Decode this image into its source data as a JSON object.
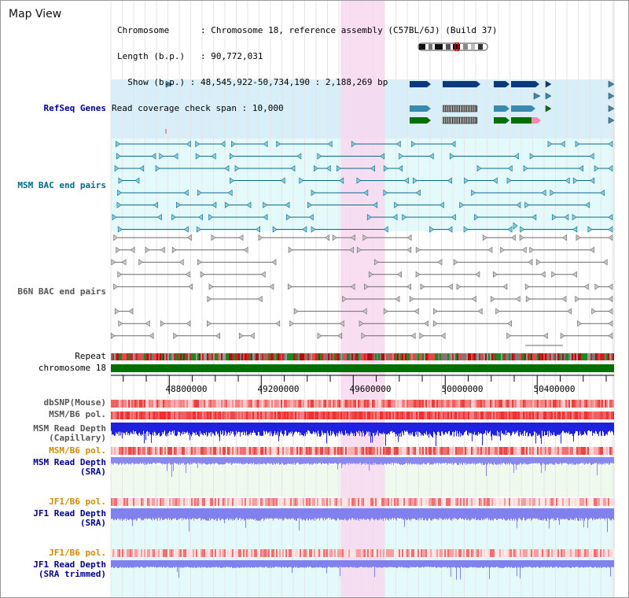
{
  "view_title": "Map View",
  "header": {
    "chromosome_label": "Chromosome",
    "chromosome_value": "Chromosome 18, reference assembly (C57BL/6J) (Build 37)",
    "length_label": "Length (b.p.)",
    "length_value": "90,772,031",
    "show_label": "Show (b.p.)",
    "show_value": "48,545,922-50,734,190 : 2,188,269 bp",
    "coverage_label": "Read coverage check span",
    "coverage_value": "10,000"
  },
  "tracks": {
    "refseq": "RefSeq Genes",
    "msm_bac": "MSM BAC end pairs",
    "b6n_bac": "B6N BAC end pairs",
    "repeat": "Repeat",
    "chrom": "chromosome 18",
    "dbsnp": "dbSNP(Mouse)",
    "msm_pol": "MSM/B6 pol.",
    "msm_depth_cap_1": "MSM Read Depth",
    "msm_depth_cap_2": "(Capillary)",
    "msm_pol2": "MSM/B6 pol.",
    "msm_depth_sra_1": "MSM Read Depth",
    "msm_depth_sra_2": "(SRA)",
    "jf1_pol": "JF1/B6 pol.",
    "jf1_depth_sra_1": "JF1 Read Depth",
    "jf1_depth_sra_2": "(SRA)",
    "jf1_pol2": "JF1/B6 pol.",
    "jf1_depth_trim_1": "JF1 Read Depth",
    "jf1_depth_trim_2": "(SRA trimmed)"
  },
  "axis": {
    "range_bp": [
      48545922,
      50734190
    ],
    "ticks": [
      "48800000",
      "49200000",
      "49600000",
      "50000000",
      "50400000"
    ]
  },
  "highlight_bp": [
    49545000,
    49735000
  ],
  "colors": {
    "refseq_bg": "#d8eef8",
    "bac_msm_bg": "#e4fafa",
    "highlight": "#f8d8f0",
    "chrom_bar": "#007000",
    "msm_color": "#0a6a8a",
    "gene_dark": "#0a3a7a",
    "gene_teal": "#3a8ab0",
    "gene_green": "#007000",
    "label_navy": "#00008b",
    "label_teal": "#006a8a",
    "label_gold": "#d08a00",
    "label_gray": "#555555"
  }
}
